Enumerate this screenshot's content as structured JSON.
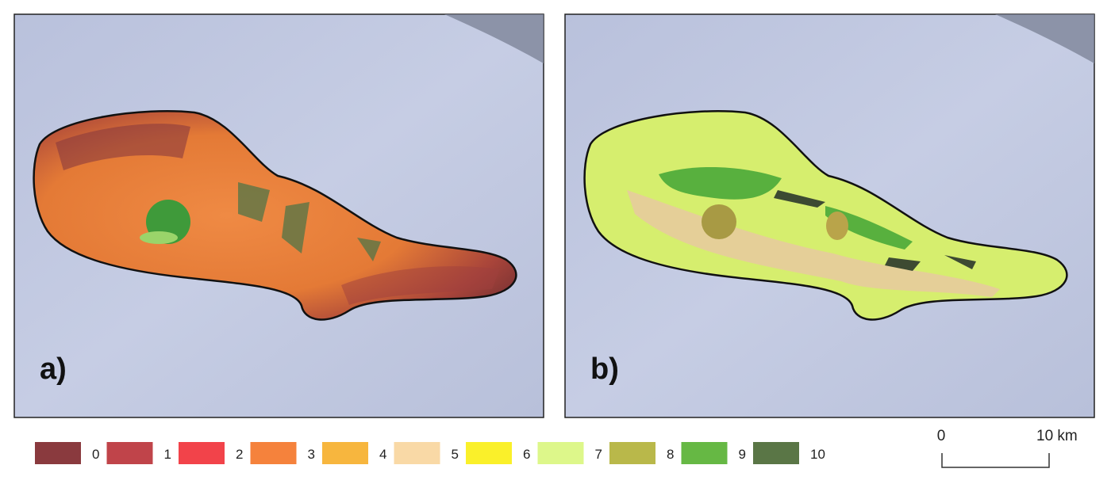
{
  "panels": [
    {
      "label": "a)"
    },
    {
      "label": "b)"
    }
  ],
  "legend": [
    {
      "label": "0",
      "color": "#8a3a3e"
    },
    {
      "label": "1",
      "color": "#c0444a"
    },
    {
      "label": "2",
      "color": "#f2434a"
    },
    {
      "label": "3",
      "color": "#f5823c"
    },
    {
      "label": "4",
      "color": "#f7b63e"
    },
    {
      "label": "5",
      "color": "#f9d9a6"
    },
    {
      "label": "6",
      "color": "#faf02a"
    },
    {
      "label": "7",
      "color": "#ddf78a"
    },
    {
      "label": "8",
      "color": "#b9b84a"
    },
    {
      "label": "9",
      "color": "#66b844"
    },
    {
      "label": "10",
      "color": "#5a7646"
    }
  ],
  "scale_bar": {
    "start": "0",
    "end": "10 km"
  }
}
